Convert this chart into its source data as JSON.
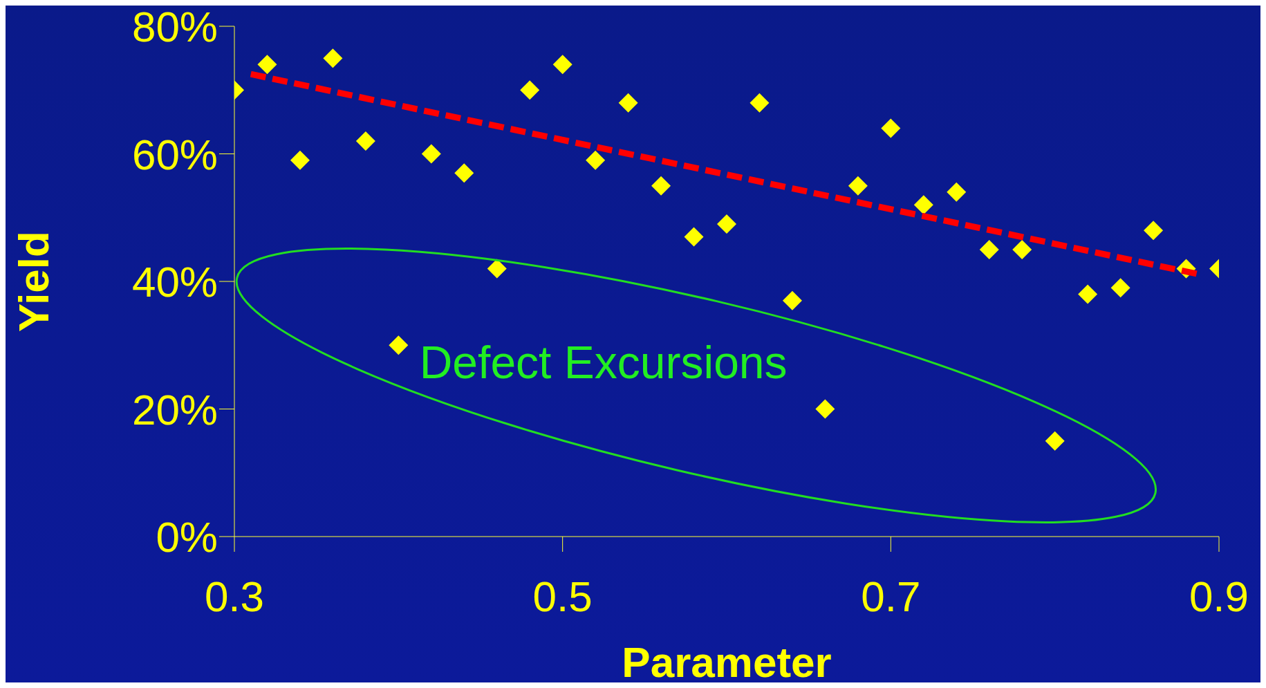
{
  "chart_data": {
    "type": "scatter",
    "xlabel": "Parameter",
    "ylabel": "Yield",
    "marker": "diamond",
    "xlim": [
      0.3,
      0.9
    ],
    "xticks": [
      0.3,
      0.5,
      0.7,
      0.9
    ],
    "ylim": [
      0,
      80
    ],
    "yticks": [
      {
        "value": 0,
        "label": "0%"
      },
      {
        "value": 20,
        "label": "20%"
      },
      {
        "value": 40,
        "label": "40%"
      },
      {
        "value": 60,
        "label": "60%"
      },
      {
        "value": 80,
        "label": "80%"
      }
    ],
    "annotations": [
      "Defect Excursions"
    ],
    "series": [
      {
        "color": "#ffff00",
        "x": [
          0.3,
          0.32,
          0.34,
          0.36,
          0.38,
          0.4,
          0.42,
          0.44,
          0.46,
          0.48,
          0.5,
          0.52,
          0.54,
          0.56,
          0.58,
          0.6,
          0.62,
          0.64,
          0.66,
          0.68,
          0.7,
          0.72,
          0.74,
          0.76,
          0.78,
          0.8,
          0.82,
          0.84,
          0.86,
          0.88,
          0.9
        ],
        "values": [
          70,
          74,
          59,
          75,
          62,
          30,
          60,
          57,
          42,
          70,
          74,
          59,
          68,
          55,
          47,
          49,
          68,
          37,
          20,
          55,
          64,
          52,
          54,
          45,
          45,
          15,
          38,
          39,
          48,
          42,
          42
        ]
      },
      {
        "type": "line",
        "color": "#ff0000",
        "line_style": "dashed",
        "marker": "none",
        "x": [
          0.31,
          0.89
        ],
        "values": [
          72.5,
          41
        ]
      }
    ]
  }
}
